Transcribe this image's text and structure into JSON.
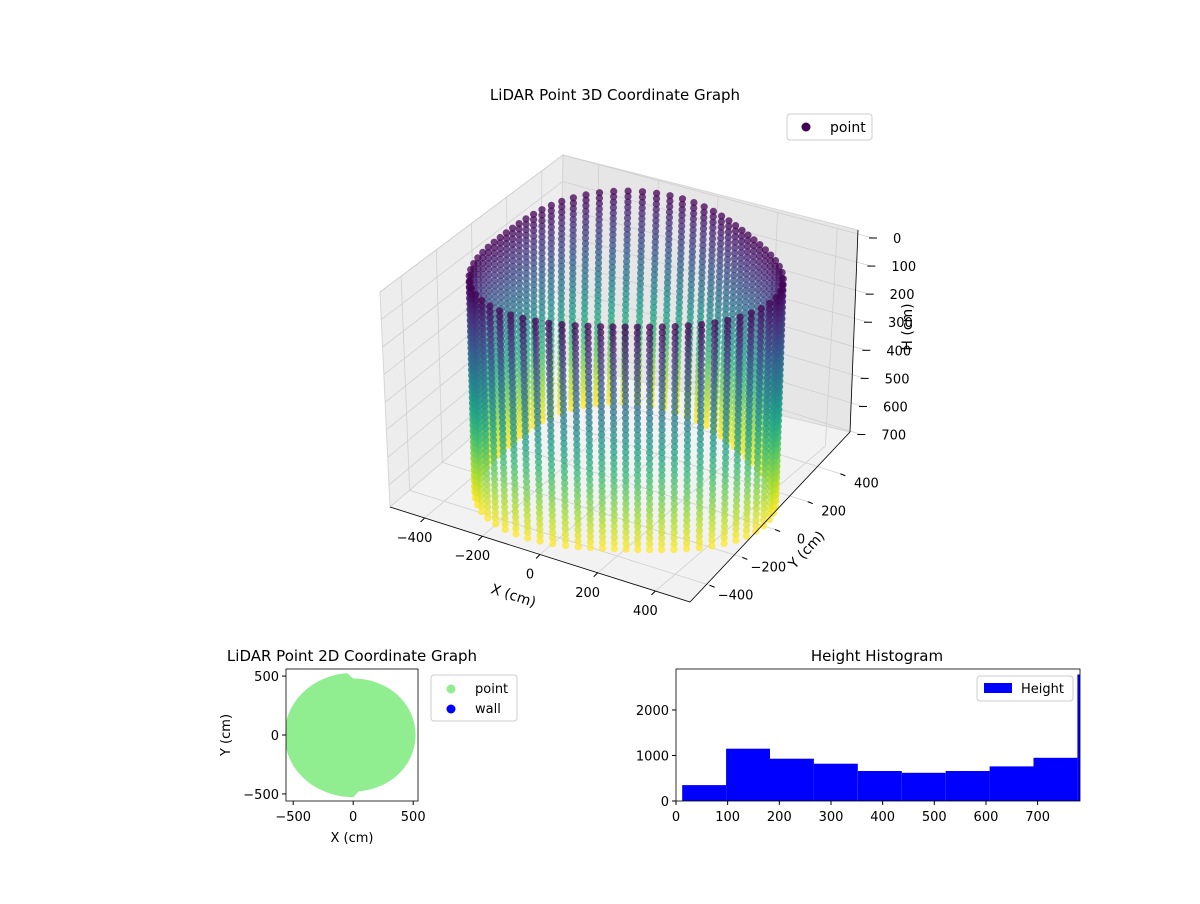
{
  "chart_data": [
    {
      "type": "scatter3d",
      "title": "LiDAR Point 3D Coordinate Graph",
      "xlabel": "X (cm)",
      "ylabel": "Y (cm)",
      "zlabel": "H (cm)",
      "xlim": [
        -520,
        520
      ],
      "ylim": [
        -520,
        520
      ],
      "zlim": [
        0,
        780
      ],
      "z_inverted": true,
      "x_ticks": [
        -400,
        -200,
        0,
        200,
        400
      ],
      "y_ticks": [
        -400,
        -200,
        0,
        200,
        400
      ],
      "z_ticks": [
        0,
        100,
        200,
        300,
        400,
        500,
        600,
        700
      ],
      "legend": {
        "placement": "upper-right",
        "entries": [
          "point"
        ]
      },
      "colormap": "viridis",
      "color_by": "height",
      "series": [
        {
          "name": "point",
          "description_shape": "cylindrical wall of scan columns",
          "radius": 480,
          "h_range": [
            0,
            780
          ],
          "color": "#440154"
        }
      ],
      "grid": true
    },
    {
      "type": "scatter",
      "title": "LiDAR Point 2D Coordinate Graph",
      "xlabel": "X (cm)",
      "ylabel": "Y (cm)",
      "xlim": [
        -560,
        540
      ],
      "ylim": [
        -560,
        560
      ],
      "x_ticks": [
        -500,
        0,
        500
      ],
      "y_ticks": [
        -500,
        0,
        500
      ],
      "legend": {
        "placement": "outside-right",
        "entries": [
          "point",
          "wall"
        ]
      },
      "series": [
        {
          "name": "point",
          "color": "#90ee90",
          "radius": 510
        },
        {
          "name": "wall",
          "color": "#0000ff",
          "values": []
        }
      ]
    },
    {
      "type": "bar",
      "title": "Height Histogram",
      "xlim": [
        0,
        782
      ],
      "ylim": [
        0,
        2900
      ],
      "x_ticks": [
        0,
        100,
        200,
        300,
        400,
        500,
        600,
        700
      ],
      "y_ticks": [
        0,
        1000,
        2000
      ],
      "legend": {
        "placement": "upper-right",
        "entries": [
          "Height"
        ]
      },
      "series": [
        {
          "name": "Height",
          "color": "#0000ff",
          "bins": [
            {
              "start": 12,
              "end": 97,
              "count": 350
            },
            {
              "start": 97,
              "end": 182,
              "count": 1150
            },
            {
              "start": 182,
              "end": 267,
              "count": 930
            },
            {
              "start": 267,
              "end": 352,
              "count": 820
            },
            {
              "start": 352,
              "end": 437,
              "count": 660
            },
            {
              "start": 437,
              "end": 522,
              "count": 620
            },
            {
              "start": 522,
              "end": 607,
              "count": 660
            },
            {
              "start": 607,
              "end": 692,
              "count": 760
            },
            {
              "start": 692,
              "end": 777,
              "count": 950
            },
            {
              "start": 777,
              "end": 782,
              "count": 2780
            }
          ]
        }
      ]
    }
  ]
}
